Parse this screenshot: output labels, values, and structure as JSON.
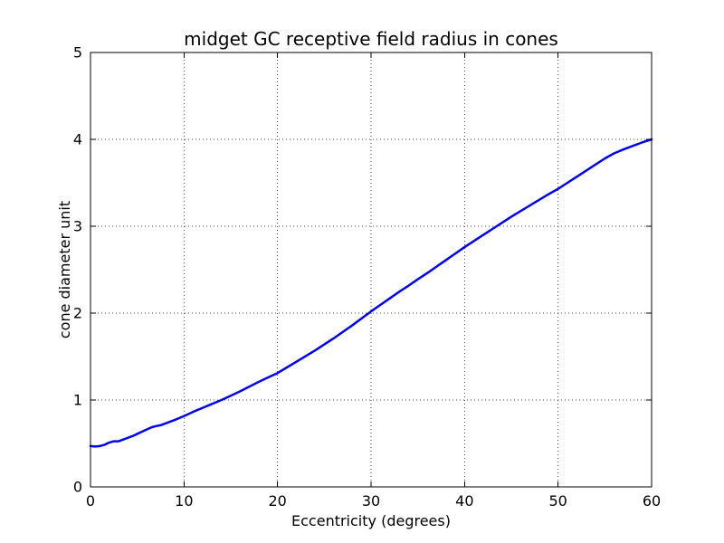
{
  "figure": {
    "background": "#ffffff",
    "frame_color": "#000000"
  },
  "chart_data": {
    "type": "line",
    "title": "midget GC receptive field radius in cones",
    "xlabel": "Eccentricity (degrees)",
    "ylabel": "cone diameter unit",
    "xlim": [
      0,
      60
    ],
    "ylim": [
      0,
      5
    ],
    "xticks": [
      0,
      10,
      20,
      30,
      40,
      50,
      60
    ],
    "yticks": [
      0,
      1,
      2,
      3,
      4,
      5
    ],
    "grid": true,
    "grid_style": "dotted",
    "grid_color": "#000000",
    "legend": "none",
    "line_color": "#0000ff",
    "line_width": 2.5,
    "series": [
      {
        "name": "midget GC receptive field radius",
        "points": [
          [
            0,
            0.47
          ],
          [
            0.5,
            0.465
          ],
          [
            1,
            0.47
          ],
          [
            1.5,
            0.485
          ],
          [
            2,
            0.51
          ],
          [
            2.5,
            0.525
          ],
          [
            3,
            0.525
          ],
          [
            3.5,
            0.545
          ],
          [
            4,
            0.565
          ],
          [
            4.5,
            0.585
          ],
          [
            5,
            0.61
          ],
          [
            5.5,
            0.635
          ],
          [
            6,
            0.66
          ],
          [
            6.5,
            0.685
          ],
          [
            7,
            0.7
          ],
          [
            7.5,
            0.71
          ],
          [
            8,
            0.73
          ],
          [
            9,
            0.77
          ],
          [
            10,
            0.815
          ],
          [
            11,
            0.865
          ],
          [
            12,
            0.91
          ],
          [
            13,
            0.955
          ],
          [
            14,
            1.0
          ],
          [
            15,
            1.05
          ],
          [
            16,
            1.1
          ],
          [
            17,
            1.155
          ],
          [
            18,
            1.21
          ],
          [
            19,
            1.26
          ],
          [
            20,
            1.31
          ],
          [
            21,
            1.375
          ],
          [
            22,
            1.44
          ],
          [
            23,
            1.505
          ],
          [
            24,
            1.57
          ],
          [
            25,
            1.64
          ],
          [
            26,
            1.71
          ],
          [
            27,
            1.785
          ],
          [
            28,
            1.86
          ],
          [
            29,
            1.94
          ],
          [
            30,
            2.02
          ],
          [
            31,
            2.095
          ],
          [
            32,
            2.17
          ],
          [
            33,
            2.245
          ],
          [
            34,
            2.315
          ],
          [
            35,
            2.39
          ],
          [
            36,
            2.46
          ],
          [
            37,
            2.535
          ],
          [
            38,
            2.61
          ],
          [
            39,
            2.685
          ],
          [
            40,
            2.76
          ],
          [
            41,
            2.83
          ],
          [
            42,
            2.9
          ],
          [
            43,
            2.97
          ],
          [
            44,
            3.04
          ],
          [
            45,
            3.11
          ],
          [
            46,
            3.175
          ],
          [
            47,
            3.24
          ],
          [
            48,
            3.305
          ],
          [
            49,
            3.37
          ],
          [
            50,
            3.43
          ],
          [
            51,
            3.5
          ],
          [
            52,
            3.57
          ],
          [
            53,
            3.64
          ],
          [
            54,
            3.71
          ],
          [
            55,
            3.78
          ],
          [
            56,
            3.84
          ],
          [
            57,
            3.885
          ],
          [
            58,
            3.925
          ],
          [
            59,
            3.965
          ],
          [
            60,
            4.0
          ]
        ]
      }
    ]
  }
}
